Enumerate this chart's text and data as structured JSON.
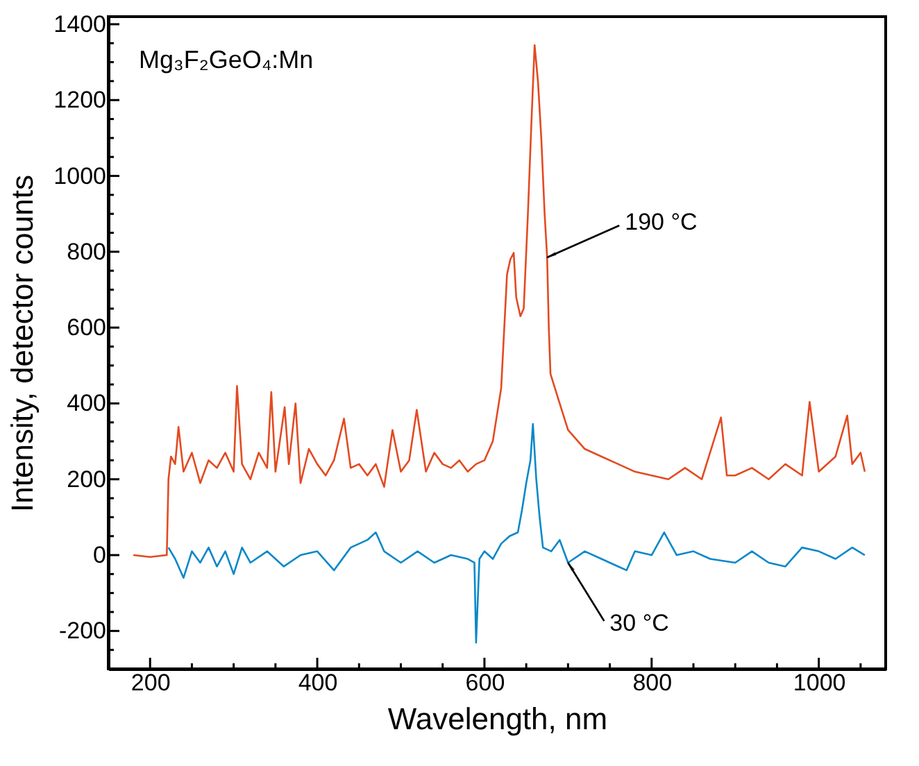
{
  "chart_data": {
    "type": "line",
    "xlabel": "Wavelength, nm",
    "ylabel": "Intensity, detector counts",
    "xlim": [
      150,
      1080
    ],
    "ylim": [
      -300,
      1420
    ],
    "xticks": [
      {
        "value": 150,
        "label": null
      },
      200,
      {
        "value": 250,
        "label": null
      },
      {
        "value": 300,
        "label": null
      },
      {
        "value": 350,
        "label": null
      },
      400,
      {
        "value": 450,
        "label": null
      },
      {
        "value": 500,
        "label": null
      },
      {
        "value": 550,
        "label": null
      },
      600,
      {
        "value": 650,
        "label": null
      },
      {
        "value": 700,
        "label": null
      },
      {
        "value": 750,
        "label": null
      },
      800,
      {
        "value": 850,
        "label": null
      },
      {
        "value": 900,
        "label": null
      },
      {
        "value": 950,
        "label": null
      },
      1000,
      {
        "value": 1050,
        "label": null
      }
    ],
    "yticks": [
      {
        "value": -250,
        "label": null
      },
      -200,
      {
        "value": -150,
        "label": null
      },
      {
        "value": -100,
        "label": null
      },
      {
        "value": -50,
        "label": null
      },
      0,
      {
        "value": 50,
        "label": null
      },
      {
        "value": 100,
        "label": null
      },
      {
        "value": 150,
        "label": null
      },
      200,
      {
        "value": 250,
        "label": null
      },
      {
        "value": 300,
        "label": null
      },
      {
        "value": 350,
        "label": null
      },
      400,
      {
        "value": 450,
        "label": null
      },
      {
        "value": 500,
        "label": null
      },
      {
        "value": 550,
        "label": null
      },
      600,
      {
        "value": 650,
        "label": null
      },
      {
        "value": 700,
        "label": null
      },
      {
        "value": 750,
        "label": null
      },
      800,
      {
        "value": 850,
        "label": null
      },
      {
        "value": 900,
        "label": null
      },
      {
        "value": 950,
        "label": null
      },
      1000,
      {
        "value": 1050,
        "label": null
      },
      {
        "value": 1100,
        "label": null
      },
      {
        "value": 1150,
        "label": null
      },
      1200,
      {
        "value": 1250,
        "label": null
      },
      {
        "value": 1300,
        "label": null
      },
      {
        "value": 1350,
        "label": null
      },
      1400
    ],
    "grid": false,
    "marker": "none",
    "line_style": "solid",
    "series": [
      {
        "color": "#e34a20",
        "x": [
          180,
          200,
          220,
          222,
          225,
          230,
          234,
          240,
          250,
          260,
          270,
          280,
          290,
          300,
          304,
          310,
          320,
          330,
          340,
          345,
          350,
          361,
          366,
          374,
          380,
          390,
          400,
          410,
          420,
          432,
          440,
          450,
          460,
          470,
          480,
          490,
          500,
          510,
          519,
          530,
          540,
          550,
          560,
          570,
          580,
          590,
          600,
          610,
          620,
          627,
          631,
          635,
          638,
          643,
          647,
          652,
          656,
          660,
          664,
          668,
          672,
          675,
          677,
          679,
          690,
          700,
          720,
          740,
          760,
          780,
          800,
          820,
          840,
          860,
          883,
          890,
          900,
          920,
          940,
          960,
          980,
          989,
          1000,
          1020,
          1034,
          1040,
          1050,
          1055
        ],
        "values": [
          0,
          -5,
          0,
          200,
          260,
          240,
          338,
          220,
          270,
          190,
          250,
          230,
          270,
          220,
          446,
          240,
          200,
          270,
          230,
          430,
          220,
          390,
          240,
          400,
          190,
          280,
          240,
          210,
          250,
          360,
          230,
          240,
          210,
          240,
          180,
          330,
          220,
          250,
          383,
          220,
          270,
          240,
          230,
          250,
          220,
          240,
          250,
          300,
          440,
          740,
          780,
          797,
          680,
          630,
          650,
          900,
          1130,
          1345,
          1250,
          1100,
          900,
          785,
          600,
          478,
          400,
          330,
          280,
          260,
          240,
          220,
          210,
          200,
          230,
          200,
          363,
          210,
          210,
          230,
          200,
          240,
          210,
          404,
          220,
          260,
          368,
          240,
          270,
          220
        ]
      },
      {
        "color": "#0a88c8",
        "x": [
          222,
          230,
          240,
          250,
          260,
          270,
          280,
          290,
          300,
          310,
          320,
          340,
          360,
          380,
          400,
          420,
          440,
          460,
          470,
          480,
          500,
          520,
          540,
          560,
          580,
          588,
          590,
          594,
          600,
          610,
          620,
          630,
          640,
          645,
          650,
          655,
          658,
          662,
          666,
          670,
          680,
          690,
          700,
          720,
          740,
          760,
          770,
          780,
          800,
          815,
          830,
          850,
          870,
          900,
          920,
          940,
          960,
          980,
          1000,
          1020,
          1040,
          1055
        ],
        "values": [
          20,
          -10,
          -60,
          10,
          -20,
          20,
          -30,
          10,
          -50,
          20,
          -20,
          10,
          -30,
          0,
          10,
          -40,
          20,
          40,
          60,
          10,
          -20,
          10,
          -20,
          0,
          -10,
          -20,
          -231,
          -10,
          10,
          -10,
          30,
          50,
          60,
          120,
          190,
          250,
          346,
          200,
          100,
          20,
          10,
          40,
          -20,
          10,
          -10,
          -30,
          -40,
          10,
          0,
          60,
          0,
          10,
          -10,
          -20,
          10,
          -20,
          -30,
          20,
          10,
          -10,
          20,
          0
        ]
      }
    ],
    "annotations": [
      "Mg₃F₂GeO₄:Mn",
      {
        "text": "190 °C",
        "x": 675,
        "y": 785
      },
      {
        "text": "30 °C",
        "x": 700,
        "y": -20
      }
    ]
  }
}
